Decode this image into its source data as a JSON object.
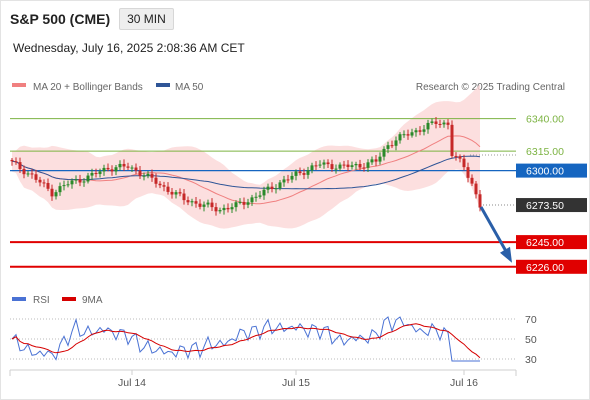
{
  "header": {
    "symbol": "S&P 500 (CME)",
    "timeframe": "30 MIN",
    "datetime": "Wednesday, July 16, 2025 2:08:36 AM CET"
  },
  "legend": {
    "ma20_label": "MA 20 + Bollinger Bands",
    "ma20_color": "#f08080",
    "ma50_label": "MA 50",
    "ma50_color": "#2f5597",
    "copyright": "Research © 2025 Trading Central"
  },
  "chart_data": [
    {
      "type": "line",
      "subtype": "candlestick",
      "title": "S&P 500 (CME)",
      "x_tick_labels": [
        "Jul 14",
        "Jul 15",
        "Jul 16"
      ],
      "ylim": [
        6212,
        6352
      ],
      "price_markers": [
        {
          "label": "6340.00",
          "value": 6340.0,
          "kind": "resistance",
          "color": "#7cb342"
        },
        {
          "label": "6315.00",
          "value": 6315.0,
          "kind": "resistance",
          "color": "#7cb342"
        },
        {
          "label": "6300.00",
          "value": 6300.0,
          "kind": "pivot",
          "color": "#1565c0"
        },
        {
          "label": "6273.50",
          "value": 6273.5,
          "kind": "last",
          "color": "#333333"
        },
        {
          "label": "6245.00",
          "value": 6245.0,
          "kind": "support",
          "color": "#e00000"
        },
        {
          "label": "6226.00",
          "value": 6226.0,
          "kind": "support",
          "color": "#e00000"
        }
      ],
      "forecast_arrow": {
        "from": 6272,
        "to": 6226,
        "color": "#2a5fa8"
      },
      "series": [
        {
          "name": "Price",
          "color_up": "#2a8a2a",
          "color_down": "#c62828"
        },
        {
          "name": "MA 20 + Bollinger Bands",
          "color": "#f08080",
          "band_color": "#fbd4d4"
        },
        {
          "name": "MA 50",
          "color": "#2f5597"
        }
      ]
    },
    {
      "type": "line",
      "title": "RSI",
      "ylim": [
        25,
        75
      ],
      "y_ticks": [
        "70",
        "50",
        "30"
      ],
      "y_tick_values": [
        70,
        50,
        30
      ],
      "series": [
        {
          "name": "RSI",
          "color": "#4a72d4"
        },
        {
          "name": "9MA",
          "color": "#d60000"
        }
      ],
      "legend": [
        "RSI",
        "9MA"
      ]
    }
  ]
}
